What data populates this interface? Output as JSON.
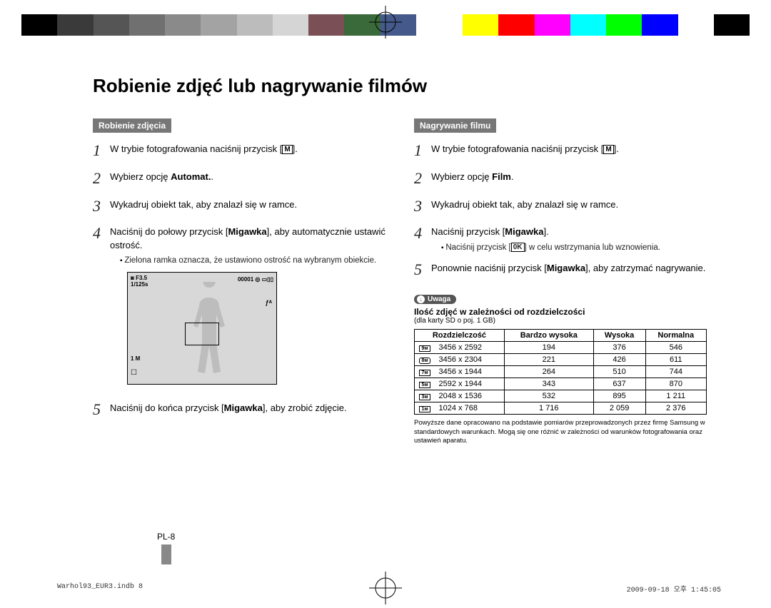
{
  "colorbar": [
    "#000000",
    "#3a3a3a",
    "#555555",
    "#707070",
    "#8a8a8a",
    "#a3a3a3",
    "#bcbcbc",
    "#d5d5d5",
    "#7a4f55",
    "#3a6a3a",
    "#455a8a",
    "#ffffff",
    "#ffff00",
    "#ff0000",
    "#ff00ff",
    "#00ffff",
    "#00ff00",
    "#0000ff",
    "#ffffff",
    "#000000"
  ],
  "title": "Robienie zdjęć lub nagrywanie filmów",
  "left": {
    "label": "Robienie zdjęcia",
    "step1_pre": "W trybie fotografowania naciśnij przycisk [",
    "step1_post": "].",
    "m_icon": "M",
    "step2_pre": "Wybierz opcję ",
    "step2_b": "Automat.",
    "step2_post": ".",
    "step3": "Wykadruj obiekt tak, aby znalazł się w ramce.",
    "step4_pre": "Naciśnij do połowy przycisk [",
    "step4_b": "Migawka",
    "step4_post": "], aby automatycznie ustawić ostrość.",
    "step4_sub": "Zielona ramka oznacza, że ustawiono ostrość na wybranym obiekcie.",
    "step5_pre": "Naciśnij do końca przycisk [",
    "step5_b": "Migawka",
    "step5_post": "], aby zrobić zdjęcie.",
    "lcd": {
      "tl_icon": "◙",
      "tl_f": "F3.5",
      "tl_s": "1/125s",
      "tr": "00001 ◎ ▭▯▯",
      "r1": "ƒᴬ",
      "bl1": "1 M",
      "bl2": "☐"
    }
  },
  "right": {
    "label": "Nagrywanie filmu",
    "step1_pre": "W trybie fotografowania naciśnij przycisk [",
    "step1_post": "].",
    "m_icon": "M",
    "step2_pre": "Wybierz opcję ",
    "step2_b": "Film",
    "step2_post": ".",
    "step3": "Wykadruj obiekt tak, aby znalazł się w ramce.",
    "step4_pre": "Naciśnij przycisk [",
    "step4_b": "Migawka",
    "step4_post": "].",
    "step4_sub_pre": "Naciśnij przycisk [",
    "step4_sub_b": "0K",
    "step4_sub_post": "] w celu wstrzymania lub wznowienia.",
    "step5_pre": "Ponownie naciśnij przycisk [",
    "step5_b": "Migawka",
    "step5_post": "], aby zatrzymać nagrywanie.",
    "note_pill": "Uwaga",
    "note_title": "Ilość zdjęć w zależności od rozdzielczości",
    "note_sub": "(dla karty SD o poj. 1 GB)",
    "table": {
      "headers": [
        "Rozdzielczość",
        "Bardzo wysoka",
        "Wysoka",
        "Normalna"
      ],
      "rows": [
        {
          "ico": "9м",
          "cls": "",
          "res": "3456 x 2592",
          "v": [
            "194",
            "376",
            "546"
          ]
        },
        {
          "ico": "8м",
          "cls": "r",
          "res": "3456 x 2304",
          "v": [
            "221",
            "426",
            "611"
          ]
        },
        {
          "ico": "7м",
          "cls": "",
          "res": "3456 x 1944",
          "v": [
            "264",
            "510",
            "744"
          ]
        },
        {
          "ico": "5м",
          "cls": "",
          "res": "2592 x 1944",
          "v": [
            "343",
            "637",
            "870"
          ]
        },
        {
          "ico": "3м",
          "cls": "",
          "res": "2048 x 1536",
          "v": [
            "532",
            "895",
            "1 211"
          ]
        },
        {
          "ico": "1м",
          "cls": "",
          "res": "1024 x 768",
          "v": [
            "1 716",
            "2 059",
            "2 376"
          ]
        }
      ]
    },
    "footnote": "Powyższe dane opracowano na podstawie pomiarów przeprowadzonych przez firmę Samsung w standardowych warunkach. Mogą się one różnić w zależności od warunków fotografowania oraz ustawień aparatu."
  },
  "page_number": "PL-8",
  "meta": {
    "file": "Warhol93_EUR3.indb   8",
    "time": "2009-09-18   오후 1:45:05"
  }
}
